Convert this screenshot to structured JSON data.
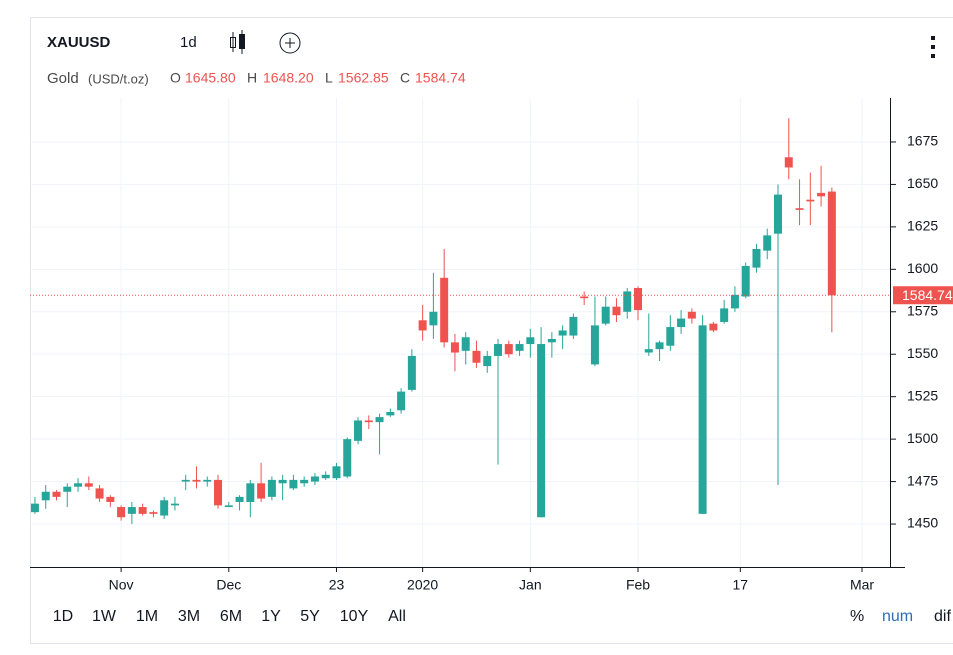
{
  "toolbar": {
    "symbol": "XAUUSD",
    "interval": "1d",
    "name": "Gold",
    "unit": "(USD/t.oz)",
    "o_label": "O",
    "open": "1645.80",
    "h_label": "H",
    "high": "1648.20",
    "l_label": "L",
    "low": "1562.85",
    "c_label": "C",
    "close": "1584.74"
  },
  "ranges": [
    "1D",
    "1W",
    "1M",
    "3M",
    "6M",
    "1Y",
    "5Y",
    "10Y",
    "All"
  ],
  "scale_modes": [
    "%",
    "num",
    "dif"
  ],
  "chart_data": {
    "type": "candlestick",
    "up_color": "#26a69a",
    "down_color": "#ef5350",
    "open": [
      1457,
      1464,
      1469,
      1469,
      1472,
      1474,
      1471,
      1466,
      1460,
      1456,
      1460,
      1457,
      1455,
      1461,
      1475,
      1476,
      1475,
      1476,
      1460,
      1463,
      1463,
      1474,
      1466,
      1474,
      1471,
      1474,
      1475,
      1477,
      1477,
      1478,
      1499,
      1511,
      1510,
      1514,
      1517,
      1529,
      1570,
      1567,
      1595,
      1557,
      1552,
      1552,
      1543,
      1549,
      1556,
      1552,
      1556,
      1454,
      1557,
      1561,
      1561,
      1584,
      1544,
      1568,
      1578,
      1575,
      1589,
      1551,
      1553,
      1555,
      1566,
      1575,
      1456,
      1568,
      1569,
      1577,
      1584,
      1601,
      1611,
      1621,
      1666,
      1636,
      1641,
      1645,
      1645.8
    ],
    "high": [
      1466,
      1473,
      1470,
      1474,
      1477,
      1478,
      1473,
      1467,
      1461,
      1463,
      1462,
      1458,
      1466,
      1466,
      1479,
      1484,
      1478,
      1479,
      1463,
      1467,
      1476,
      1486,
      1478,
      1479,
      1479,
      1478,
      1480,
      1481,
      1486,
      1501,
      1513,
      1514,
      1515,
      1518,
      1530,
      1553,
      1579,
      1598,
      1612,
      1562,
      1563,
      1558,
      1552,
      1559,
      1558,
      1558,
      1565,
      1566,
      1563,
      1567,
      1574,
      1587,
      1584,
      1584,
      1583,
      1589,
      1590,
      1574,
      1558,
      1573,
      1576,
      1577,
      1573,
      1569,
      1582,
      1590,
      1604,
      1615,
      1624,
      1650,
      1689,
      1653,
      1657,
      1661,
      1648.2
    ],
    "low": [
      1456,
      1459,
      1464,
      1460,
      1469,
      1470,
      1463,
      1460,
      1452,
      1450,
      1455,
      1454,
      1453,
      1458,
      1470,
      1471,
      1472,
      1459,
      1460,
      1458,
      1454,
      1463,
      1464,
      1464,
      1470,
      1472,
      1473,
      1476,
      1476,
      1477,
      1497,
      1506,
      1491,
      1513,
      1515,
      1528,
      1558,
      1559,
      1554,
      1540,
      1544,
      1542,
      1539,
      1485,
      1548,
      1549,
      1548,
      1454,
      1548,
      1553,
      1559,
      1579,
      1543,
      1567,
      1569,
      1571,
      1570,
      1549,
      1546,
      1552,
      1562,
      1568,
      1456,
      1563,
      1568,
      1575,
      1583,
      1598,
      1606,
      1473,
      1653,
      1626,
      1626,
      1637,
      1562.85
    ],
    "close": [
      1462,
      1469,
      1466,
      1472,
      1474,
      1472,
      1465,
      1463,
      1454,
      1460,
      1456,
      1456,
      1464,
      1462,
      1476,
      1475,
      1476,
      1461,
      1461,
      1466,
      1474,
      1465,
      1476,
      1476,
      1476,
      1476,
      1478,
      1479,
      1484,
      1500,
      1511,
      1510,
      1513,
      1516,
      1528,
      1549,
      1564,
      1575,
      1557,
      1551,
      1560,
      1545,
      1549,
      1556,
      1550,
      1556,
      1560,
      1556,
      1559,
      1564,
      1572,
      1583,
      1567,
      1578,
      1573,
      1587,
      1576,
      1553,
      1557,
      1566,
      1571,
      1571,
      1567,
      1564,
      1577,
      1585,
      1602,
      1612,
      1620,
      1644,
      1660,
      1635,
      1640,
      1643,
      1584.74
    ],
    "last_price": {
      "value": 1584.74,
      "label": "1584.74"
    },
    "xlim": [
      -0.46,
      79.4
    ],
    "xticks": [
      {
        "value": 8,
        "label": "Nov"
      },
      {
        "value": 18,
        "label": "Dec"
      },
      {
        "value": 28,
        "label": "23"
      },
      {
        "value": 36,
        "label": "2020"
      },
      {
        "value": 46,
        "label": "Jan"
      },
      {
        "value": 56,
        "label": "Feb"
      },
      {
        "value": 65.5,
        "label": "17"
      },
      {
        "value": 76.8,
        "label": "Mar"
      }
    ],
    "ylim": [
      1424.7,
      1700.9
    ],
    "yticks": [
      1450,
      1475,
      1500,
      1525,
      1550,
      1575,
      1600,
      1625,
      1650,
      1675
    ],
    "grid": true
  }
}
